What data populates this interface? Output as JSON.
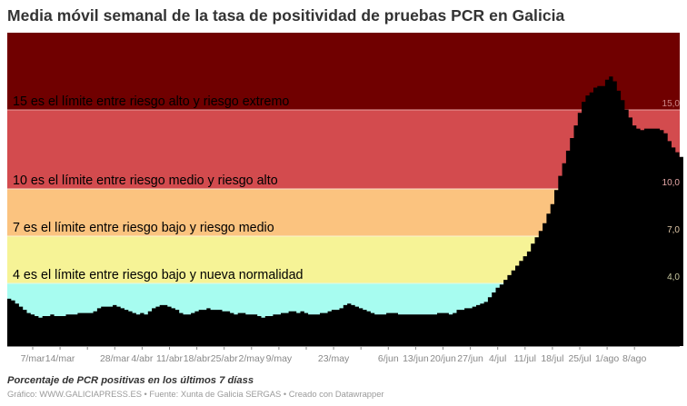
{
  "title": "Media móvil semanal de la tasa de positividad de pruebas PCR en Galicia",
  "subtitle": "Porcentaje de PCR positivas en los últimos 7 díass",
  "footer": "Gráfico: WWW.GALICIAPRESS.ES • Fuente: Xunta de Galicia SERGAS • Creado con Datawrapper",
  "colors": {
    "extreme": "#700000",
    "high": "#d34b4e",
    "medium": "#fbc37f",
    "low": "#f6f396",
    "normal": "#a7fcf0",
    "area": "#000000"
  },
  "bands": [
    {
      "label": "15 es el límite entre riesgo alto y riesgo extremo",
      "threshold": "15,0",
      "color": "#700000",
      "text_color": "#ffffff"
    },
    {
      "label": "10 es el límite entre riesgo medio y riesgo alto",
      "threshold": "10,0",
      "color": "#d34b4e",
      "text_color": "#333333"
    },
    {
      "label": "7 es el límite entre riesgo bajo y riesgo medio",
      "threshold": "7,0",
      "color": "#fbc37f",
      "text_color": "#333333"
    },
    {
      "label": "4 es el límite entre riesgo bajo y nueva normalidad",
      "threshold": "4,0",
      "color": "#f6f396",
      "text_color": "#333333"
    }
  ],
  "x_ticks": [
    "7/mar",
    "14/mar",
    "",
    "28/mar",
    "4/abr",
    "11/abr",
    "18/abr",
    "25/abr",
    "2/may",
    "9/may",
    "",
    "23/may",
    "",
    "6/jun",
    "13/jun",
    "20/jun",
    "27/jun",
    "4/jul",
    "11/jul",
    "18/jul",
    "25/jul",
    "1/ago",
    "8/ago"
  ],
  "chart_data": {
    "type": "area",
    "title": "Media móvil semanal de la tasa de positividad de pruebas PCR en Galicia",
    "subtitle": "Porcentaje de PCR positivas en los últimos 7 díass",
    "xlabel": "",
    "ylabel": "",
    "ylim": [
      0,
      19.9
    ],
    "grid": false,
    "x_start": "1/mar",
    "x_end": "14/ago",
    "x_tick_labels": [
      "7/mar",
      "14/mar",
      "28/mar",
      "4/abr",
      "11/abr",
      "18/abr",
      "25/abr",
      "2/may",
      "9/may",
      "23/may",
      "6/jun",
      "13/jun",
      "20/jun",
      "27/jun",
      "4/jul",
      "11/jul",
      "18/jul",
      "25/jul",
      "1/ago",
      "8/ago"
    ],
    "reference_lines": [
      {
        "y": 15.0,
        "label": "15 es el límite entre riesgo alto y riesgo extremo"
      },
      {
        "y": 10.0,
        "label": "10 es el límite entre riesgo medio y riesgo alto"
      },
      {
        "y": 7.0,
        "label": "7 es el límite entre riesgo bajo y riesgo medio"
      },
      {
        "y": 4.0,
        "label": "4 es el límite entre riesgo bajo y nueva normalidad"
      }
    ],
    "weekly_values": {
      "dates": [
        "1/mar",
        "7/mar",
        "14/mar",
        "21/mar",
        "28/mar",
        "4/abr",
        "11/abr",
        "18/abr",
        "25/abr",
        "2/may",
        "9/may",
        "16/may",
        "23/may",
        "30/may",
        "6/jun",
        "13/jun",
        "20/jun",
        "27/jun",
        "4/jul",
        "11/jul",
        "18/jul",
        "25/jul",
        "1/ago",
        "8/ago",
        "14/ago"
      ],
      "values": [
        3.1,
        1.9,
        2.1,
        2.3,
        2.0,
        2.6,
        2.2,
        2.5,
        2.3,
        2.0,
        2.1,
        2.0,
        2.5,
        2.0,
        2.0,
        2.0,
        2.3,
        3.3,
        5.3,
        8.2,
        14.0,
        16.5,
        14.3,
        13.6,
        12.0
      ]
    },
    "daily_values": [
      3.0,
      2.9,
      2.7,
      2.5,
      2.3,
      2.1,
      2.0,
      1.9,
      1.8,
      1.9,
      1.9,
      2.0,
      1.9,
      1.9,
      1.9,
      2.0,
      2.0,
      2.0,
      2.1,
      2.1,
      2.1,
      2.1,
      2.2,
      2.4,
      2.5,
      2.5,
      2.5,
      2.6,
      2.5,
      2.4,
      2.3,
      2.2,
      2.1,
      2.0,
      2.1,
      2.0,
      2.2,
      2.4,
      2.5,
      2.6,
      2.6,
      2.5,
      2.4,
      2.3,
      2.1,
      2.0,
      2.0,
      2.1,
      2.2,
      2.3,
      2.3,
      2.4,
      2.3,
      2.3,
      2.3,
      2.2,
      2.2,
      2.1,
      2.0,
      2.1,
      2.1,
      2.0,
      2.0,
      2.0,
      1.9,
      1.8,
      1.9,
      1.9,
      2.0,
      2.0,
      2.1,
      2.1,
      2.2,
      2.2,
      2.1,
      2.2,
      2.1,
      2.0,
      2.0,
      2.0,
      2.1,
      2.1,
      2.2,
      2.3,
      2.3,
      2.4,
      2.6,
      2.7,
      2.6,
      2.5,
      2.4,
      2.3,
      2.2,
      2.1,
      2.0,
      2.0,
      2.0,
      2.1,
      2.1,
      2.1,
      2.0,
      2.0,
      2.0,
      2.0,
      2.0,
      2.0,
      2.0,
      2.0,
      2.0,
      2.0,
      2.1,
      2.1,
      2.1,
      2.0,
      2.1,
      2.3,
      2.3,
      2.4,
      2.4,
      2.5,
      2.6,
      2.7,
      2.8,
      3.1,
      3.4,
      3.7,
      3.9,
      4.2,
      4.5,
      4.8,
      5.1,
      5.4,
      5.7,
      6.0,
      6.5,
      6.9,
      7.3,
      7.8,
      8.4,
      9.0,
      9.9,
      10.8,
      11.6,
      12.4,
      13.2,
      14.0,
      14.8,
      15.5,
      15.9,
      16.1,
      16.4,
      16.5,
      16.5,
      16.9,
      17.1,
      16.8,
      16.2,
      15.6,
      15.0,
      14.5,
      14.0,
      13.8,
      13.7,
      13.8,
      13.8,
      13.8,
      13.8,
      13.7,
      13.5,
      13.0,
      12.6,
      12.3,
      12.0
    ]
  }
}
